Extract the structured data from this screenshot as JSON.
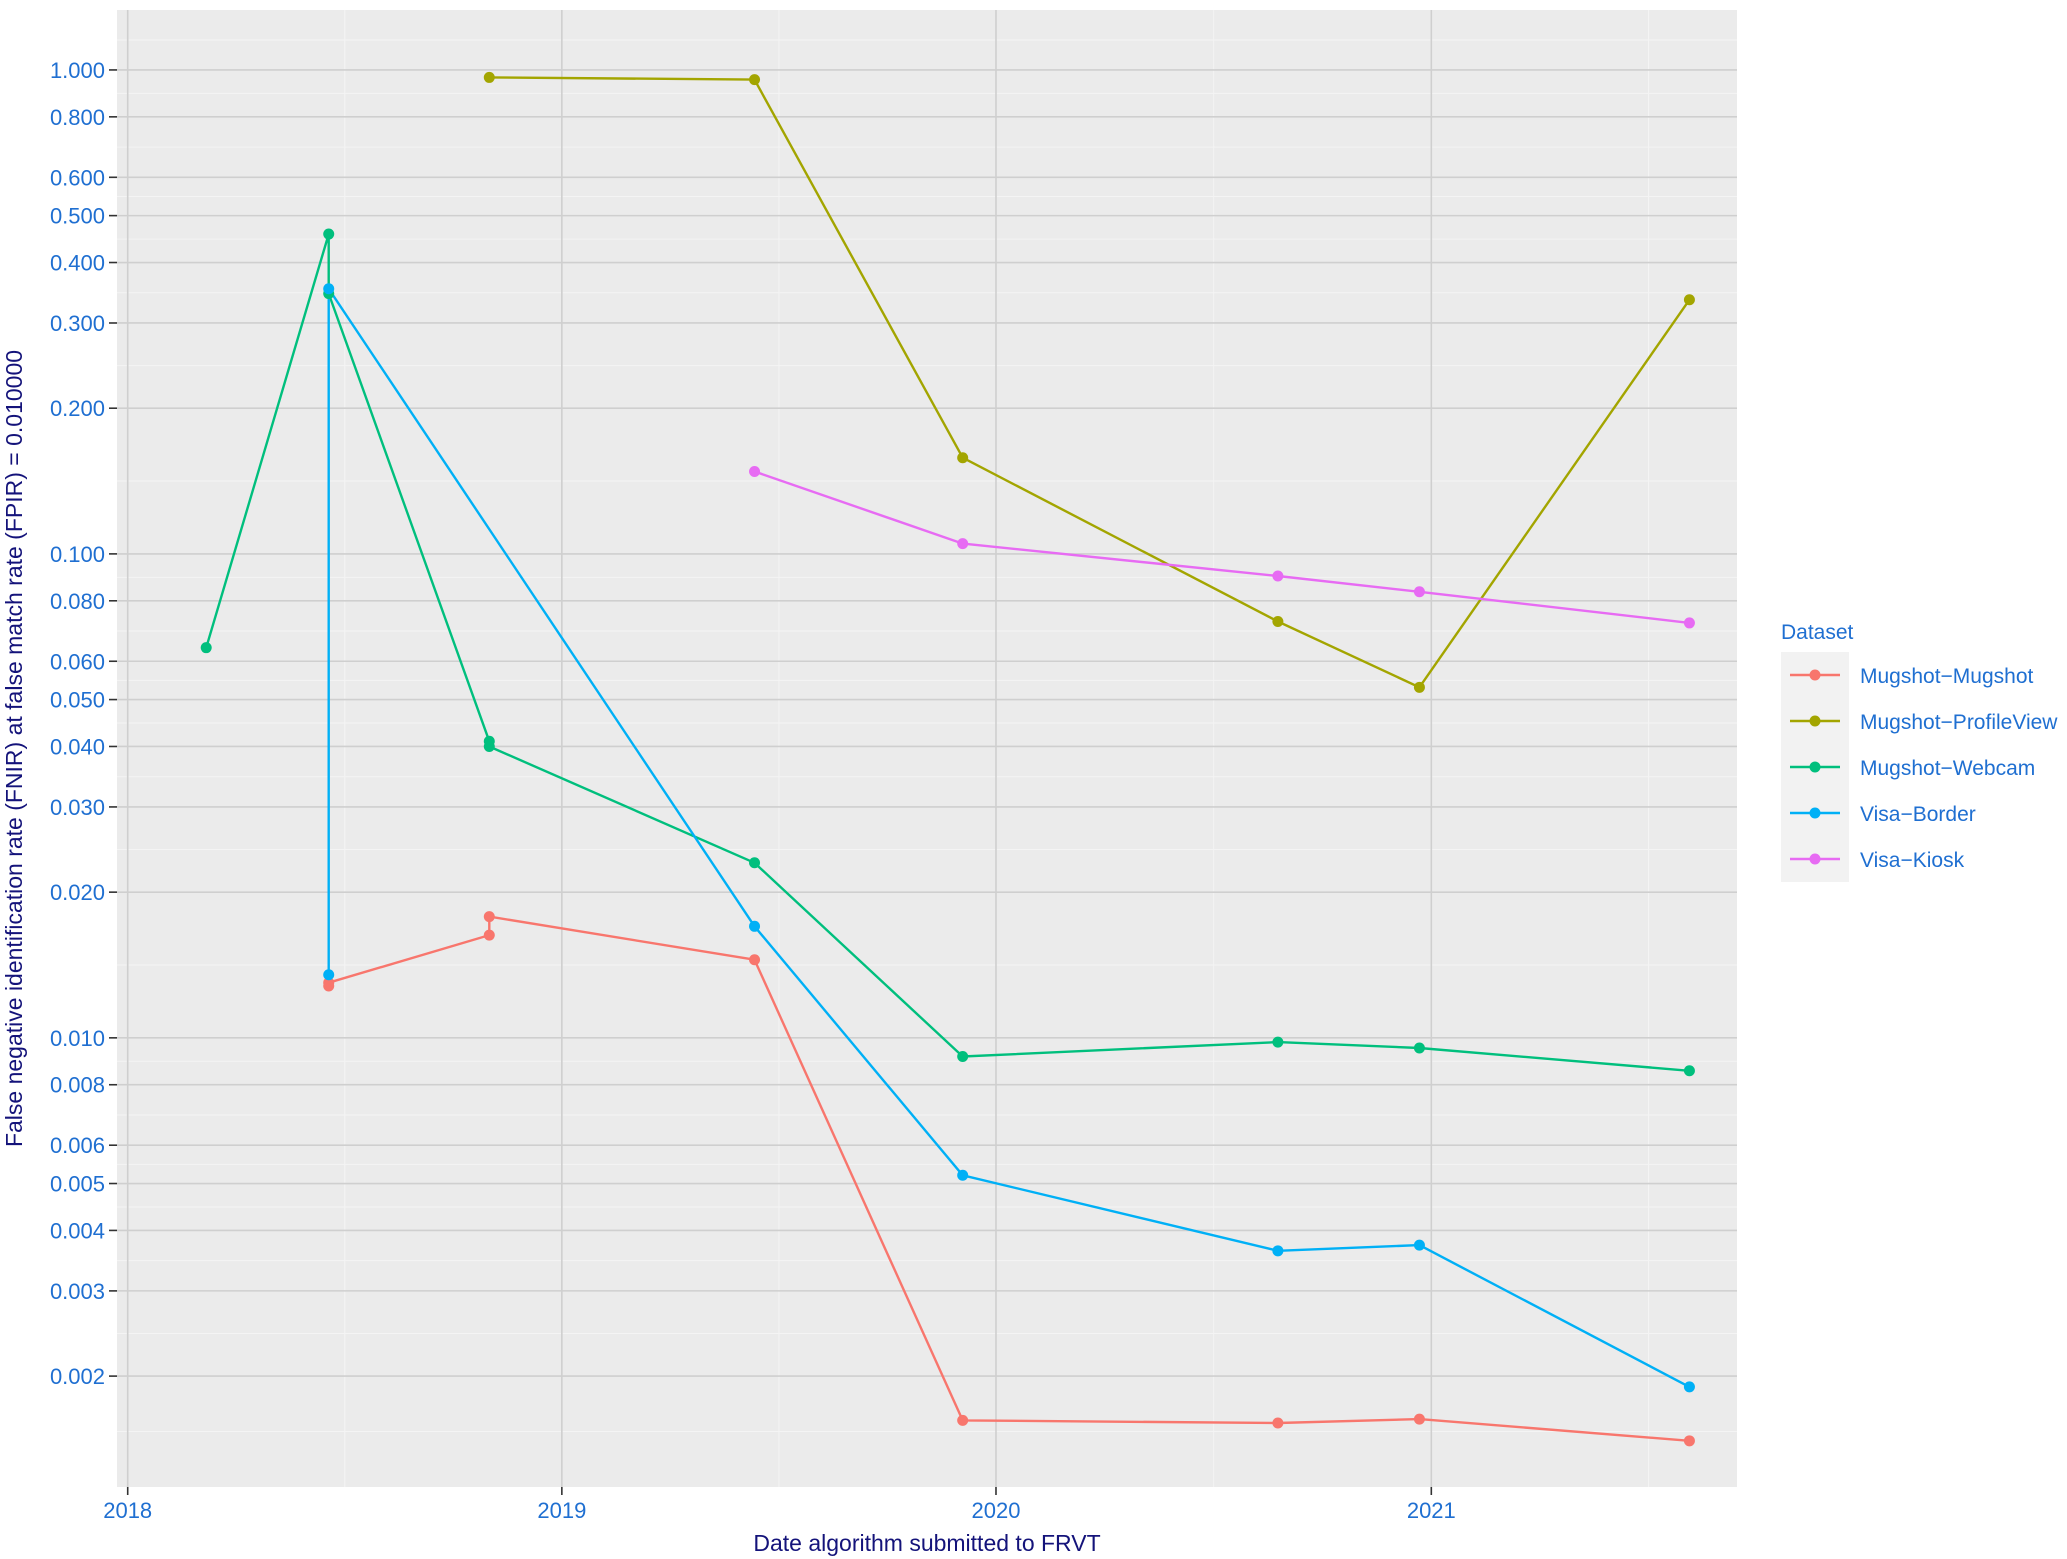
{
  "chart_data": {
    "type": "line",
    "title": "",
    "xlabel": "Date algorithm submitted to FRVT",
    "ylabel": "False negative identification rate (FNIR) at false match rate (FPIR) = 0.010000",
    "x_scale": "date",
    "y_scale": "log10",
    "xlim": [
      "2017-12-23",
      "2021-09-15"
    ],
    "ylim": [
      0.00118,
      1.33
    ],
    "x_ticks": [
      "2018-01-01",
      "2019-01-01",
      "2020-01-01",
      "2021-01-01"
    ],
    "x_tick_labels": [
      "2018",
      "2019",
      "2020",
      "2021"
    ],
    "y_ticks": [
      0.002,
      0.003,
      0.004,
      0.005,
      0.006,
      0.008,
      0.01,
      0.02,
      0.03,
      0.04,
      0.05,
      0.06,
      0.08,
      0.1,
      0.2,
      0.3,
      0.4,
      0.5,
      0.6,
      0.8,
      1.0
    ],
    "y_tick_labels": [
      "0.002",
      "0.003",
      "0.004",
      "0.005",
      "0.006",
      "0.008",
      "0.010",
      "0.020",
      "0.030",
      "0.040",
      "0.050",
      "0.060",
      "0.080",
      "0.100",
      "0.200",
      "0.300",
      "0.400",
      "0.500",
      "0.600",
      "0.800",
      "1.000"
    ],
    "grid": true,
    "legend": {
      "title": "Dataset",
      "position": "right"
    },
    "series": [
      {
        "name": "Mugshot−Mugshot",
        "color": "#F8766D",
        "x": [
          "2018-06-19",
          "2018-06-19",
          "2018-11-01",
          "2018-11-01",
          "2019-06-12",
          "2019-12-04",
          "2020-08-25",
          "2020-12-22",
          "2021-08-06"
        ],
        "y": [
          0.0128,
          0.013,
          0.0163,
          0.0178,
          0.0145,
          0.00162,
          0.0016,
          0.00163,
          0.00147
        ]
      },
      {
        "name": "Mugshot−ProfileView",
        "color": "#A3A500",
        "x": [
          "2018-11-01",
          "2019-06-12",
          "2019-12-04",
          "2020-08-25",
          "2020-12-22",
          "2021-08-06"
        ],
        "y": [
          0.965,
          0.955,
          0.158,
          0.0725,
          0.053,
          0.335
        ]
      },
      {
        "name": "Mugshot−Webcam",
        "color": "#00BF7D",
        "x": [
          "2018-03-08",
          "2018-06-19",
          "2018-06-19",
          "2018-11-01",
          "2018-11-01",
          "2019-06-12",
          "2019-12-04",
          "2020-08-25",
          "2020-12-22",
          "2021-08-06"
        ],
        "y": [
          0.064,
          0.458,
          0.345,
          0.041,
          0.04,
          0.023,
          0.00915,
          0.0098,
          0.00953,
          0.00855
        ]
      },
      {
        "name": "Visa−Border",
        "color": "#00B0F6",
        "x": [
          "2018-06-19",
          "2018-06-19",
          "2019-06-12",
          "2019-12-04",
          "2020-08-25",
          "2020-12-22",
          "2021-08-06"
        ],
        "y": [
          0.0135,
          0.353,
          0.017,
          0.0052,
          0.00363,
          0.00373,
          0.0019
        ]
      },
      {
        "name": "Visa−Kiosk",
        "color": "#E76BF3",
        "x": [
          "2019-06-12",
          "2019-12-04",
          "2020-08-25",
          "2020-12-22",
          "2021-08-06"
        ],
        "y": [
          0.148,
          0.105,
          0.09,
          0.0835,
          0.072
        ]
      }
    ]
  }
}
